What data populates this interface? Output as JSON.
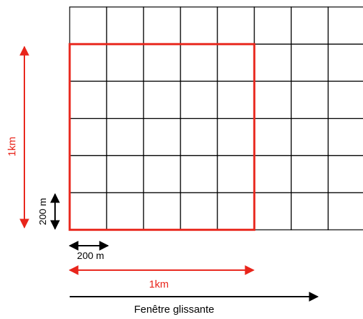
{
  "grid": {
    "columns": 8,
    "rows": 6,
    "line_color": "#000000"
  },
  "window": {
    "columns": 5,
    "rows": 5,
    "color": "#e8251b"
  },
  "labels": {
    "window_height": "1km",
    "window_width": "1km",
    "cell_height": "200 m",
    "cell_width": "200 m",
    "sliding_window": "Fenêtre glissante"
  },
  "colors": {
    "accent": "#e8251b",
    "ink": "#000000"
  }
}
